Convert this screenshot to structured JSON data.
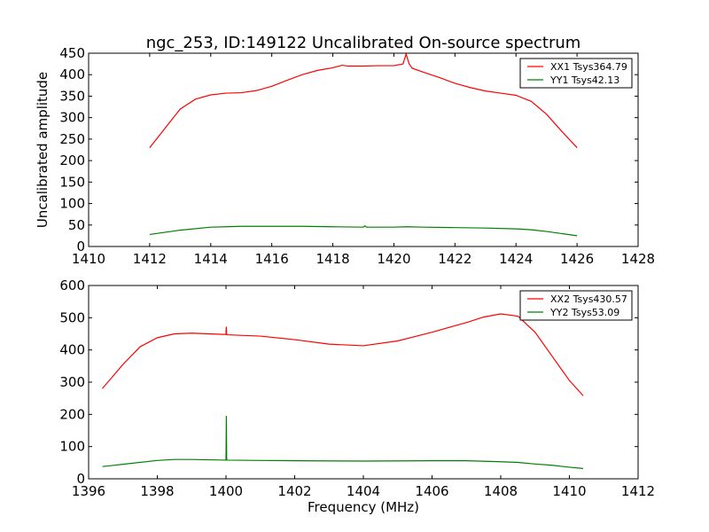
{
  "chart_data": [
    {
      "type": "line",
      "title": "ngc_253, ID:149122 Uncalibrated On-source spectrum",
      "xlabel": "",
      "ylabel": "Uncalibrated amplitude",
      "xlim": [
        1410,
        1428
      ],
      "ylim": [
        0,
        450
      ],
      "xticks": [
        1410,
        1412,
        1414,
        1416,
        1418,
        1420,
        1422,
        1424,
        1426,
        1428
      ],
      "yticks": [
        0,
        50,
        100,
        150,
        200,
        250,
        300,
        350,
        400,
        450
      ],
      "legend": "top-right",
      "series": [
        {
          "name": "XX1 Tsys364.79",
          "color": "#ff0000",
          "x": [
            1412,
            1412.5,
            1413,
            1413.5,
            1414,
            1414.5,
            1415,
            1415.5,
            1416,
            1416.5,
            1417,
            1417.5,
            1418,
            1418.3,
            1418.5,
            1419,
            1419.5,
            1420,
            1420.3,
            1420.4,
            1420.5,
            1420.6,
            1421,
            1421.5,
            1422,
            1422.5,
            1423,
            1423.5,
            1424,
            1424.5,
            1425,
            1425.5,
            1426
          ],
          "y": [
            230,
            275,
            320,
            343,
            353,
            357,
            358,
            363,
            373,
            387,
            400,
            410,
            416,
            422,
            420,
            420,
            421,
            421,
            425,
            448,
            425,
            415,
            405,
            393,
            380,
            370,
            362,
            357,
            352,
            338,
            308,
            268,
            230
          ]
        },
        {
          "name": "YY1 Tsys42.13",
          "color": "#008000",
          "x": [
            1412,
            1413,
            1414,
            1415,
            1416,
            1417,
            1418,
            1419,
            1419.05,
            1419.1,
            1420,
            1420.4,
            1421,
            1422,
            1423,
            1424,
            1424.5,
            1425,
            1425.5,
            1426
          ],
          "y": [
            28,
            38,
            45,
            47,
            47,
            47,
            46,
            45,
            48,
            45,
            45,
            46,
            45,
            44,
            43,
            41,
            39,
            35,
            30,
            25
          ]
        }
      ]
    },
    {
      "type": "line",
      "title": "",
      "xlabel": "Frequency (MHz)",
      "ylabel": "",
      "xlim": [
        1396,
        1412
      ],
      "ylim": [
        0,
        600
      ],
      "xticks": [
        1396,
        1398,
        1400,
        1402,
        1404,
        1406,
        1408,
        1410,
        1412
      ],
      "yticks": [
        0,
        100,
        200,
        300,
        400,
        500,
        600
      ],
      "legend": "top-right",
      "series": [
        {
          "name": "XX2 Tsys430.57",
          "color": "#ff0000",
          "x": [
            1396.4,
            1397,
            1397.5,
            1398,
            1398.5,
            1399,
            1399.5,
            1400,
            1400.01,
            1400.02,
            1400.03,
            1401,
            1402,
            1403,
            1404,
            1405,
            1406,
            1407,
            1407.5,
            1408,
            1408.5,
            1409,
            1409.5,
            1410,
            1410.4
          ],
          "y": [
            280,
            355,
            410,
            438,
            450,
            452,
            450,
            448,
            472,
            448,
            447,
            443,
            432,
            418,
            413,
            428,
            455,
            485,
            502,
            512,
            505,
            455,
            380,
            305,
            258
          ]
        },
        {
          "name": "YY2 Tsys53.09",
          "color": "#008000",
          "x": [
            1396.4,
            1397,
            1398,
            1398.5,
            1399,
            1400,
            1400.01,
            1400.02,
            1400.03,
            1401,
            1402,
            1404,
            1406,
            1407,
            1408,
            1408.5,
            1409,
            1409.5,
            1410,
            1410.4
          ],
          "y": [
            38,
            45,
            57,
            60,
            60,
            58,
            195,
            62,
            58,
            57,
            56,
            55,
            56,
            56,
            53,
            51,
            46,
            42,
            36,
            32
          ]
        }
      ]
    }
  ]
}
